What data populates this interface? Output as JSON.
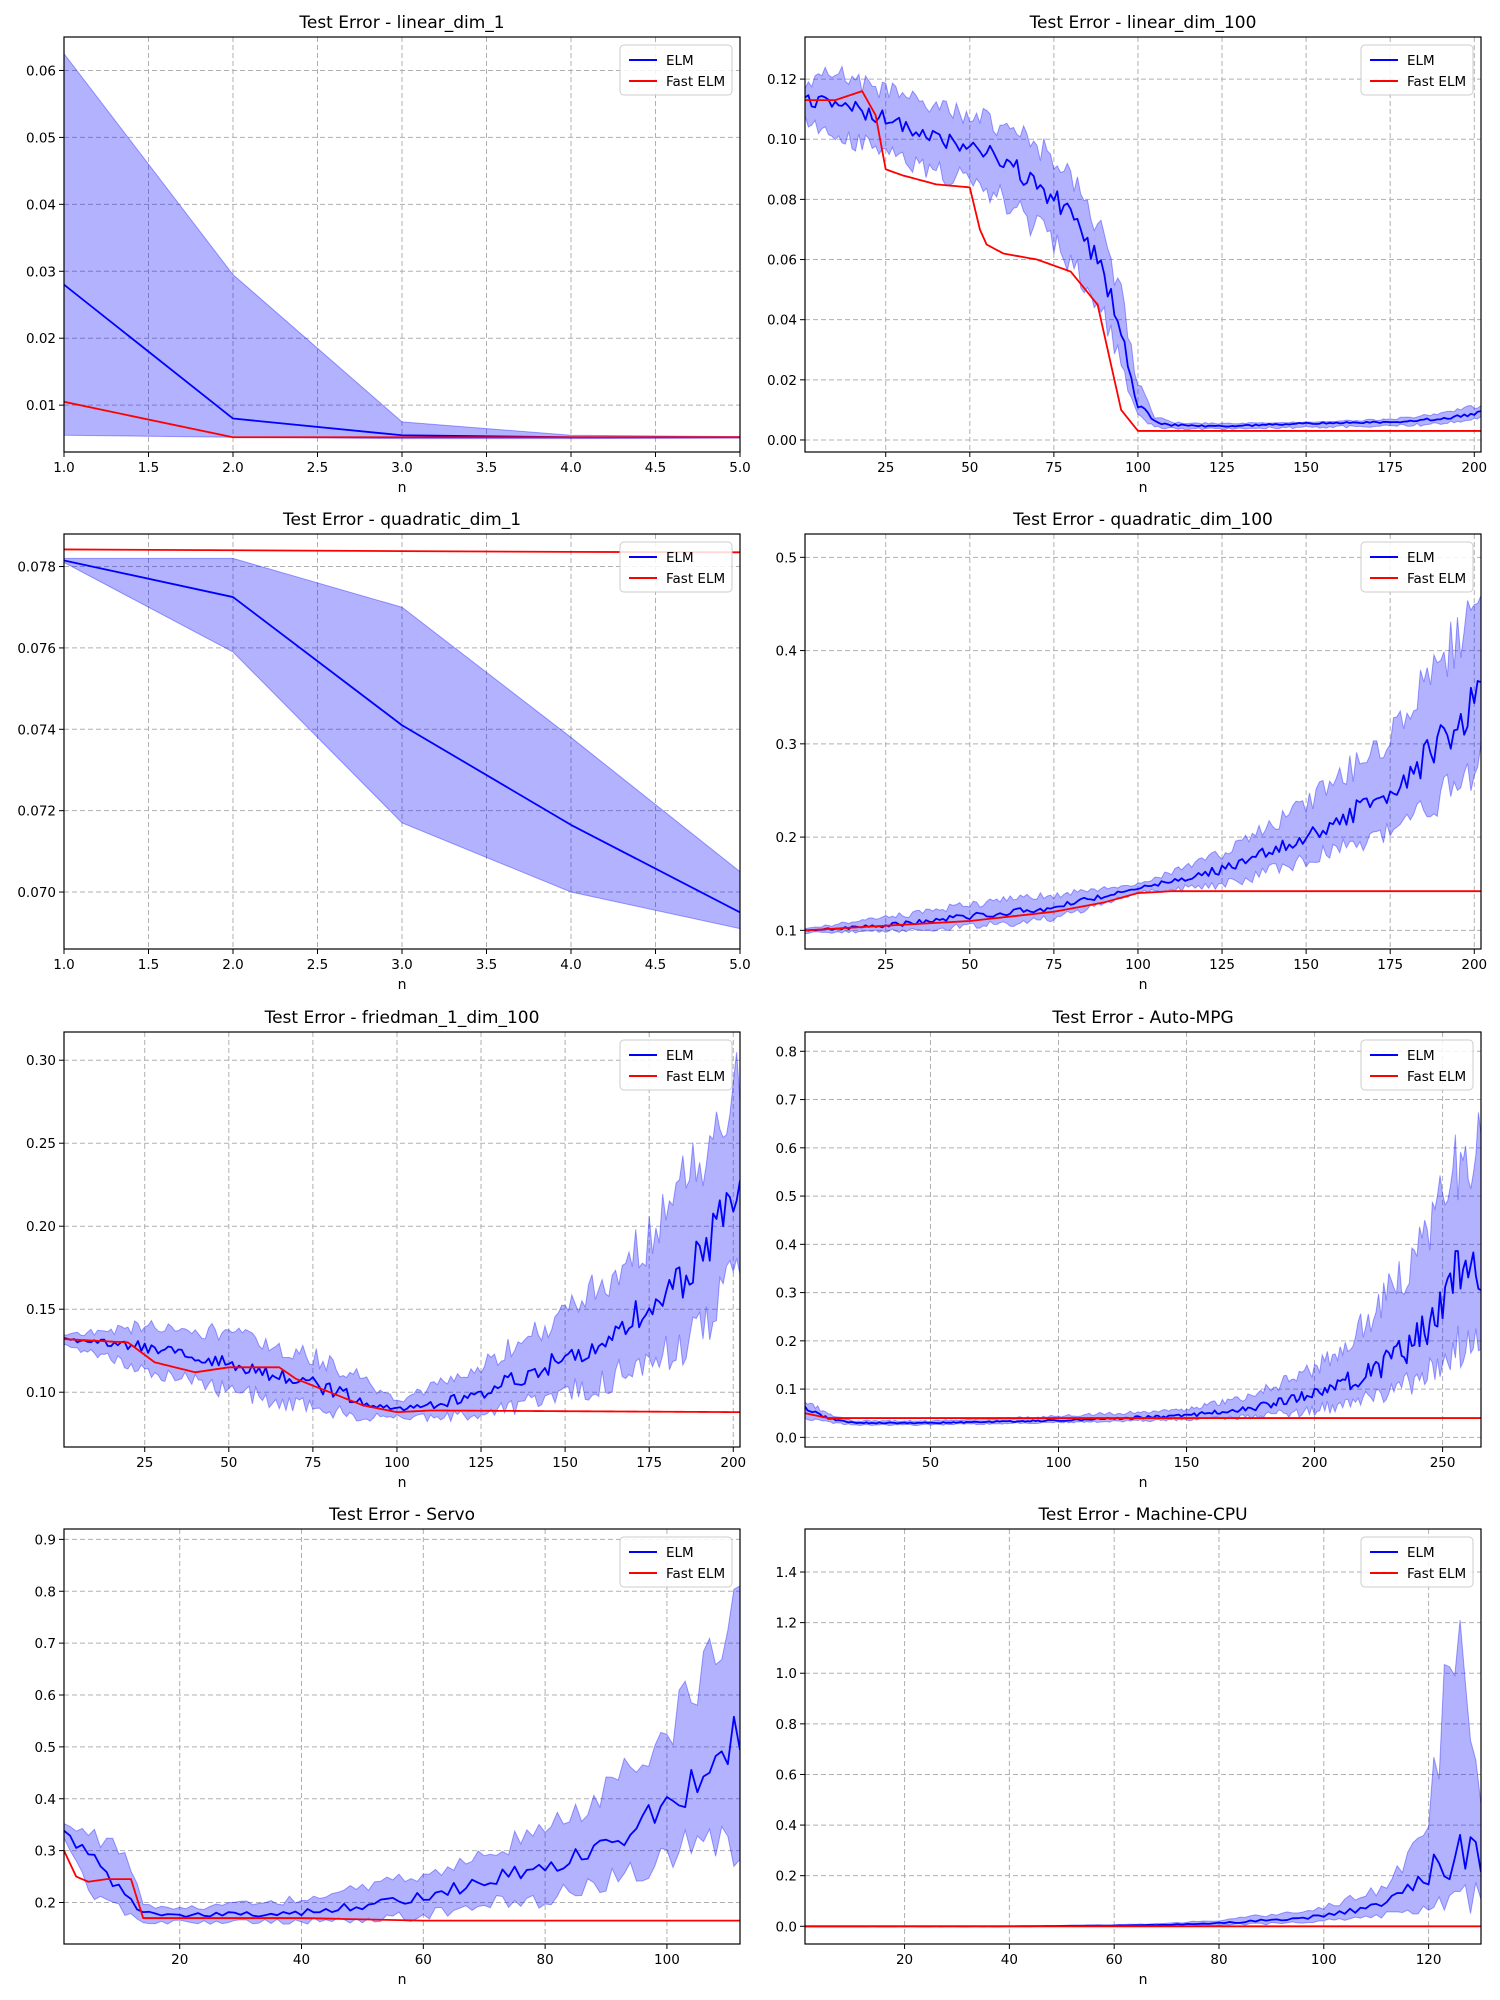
{
  "colors": {
    "elm": "#0000ff",
    "fast_elm": "#ff0000",
    "band": "#0000ff"
  },
  "chart_data": [
    {
      "type": "line",
      "title": "Test Error - linear_dim_1",
      "xlabel": "n",
      "xlim": [
        1,
        5
      ],
      "ylim": [
        0.003,
        0.065
      ],
      "xticks": [
        1.0,
        1.5,
        2.0,
        2.5,
        3.0,
        3.5,
        4.0,
        4.5,
        5.0
      ],
      "xtick_labels": [
        "1.0",
        "1.5",
        "2.0",
        "2.5",
        "3.0",
        "3.5",
        "4.0",
        "4.5",
        "5.0"
      ],
      "yticks": [
        0.01,
        0.02,
        0.03,
        0.04,
        0.05,
        0.06
      ],
      "ytick_labels": [
        "0.01",
        "0.02",
        "0.03",
        "0.04",
        "0.05",
        "0.06"
      ],
      "grid": true,
      "legend": "top-right",
      "series": [
        {
          "name": "ELM",
          "x": [
            1,
            2,
            3,
            4,
            5
          ],
          "values": [
            0.028,
            0.008,
            0.0055,
            0.0052,
            0.0052
          ],
          "band_upper": [
            0.0625,
            0.0295,
            0.0075,
            0.0055,
            0.0053
          ],
          "band_lower": [
            0.0055,
            0.0052,
            0.005,
            0.005,
            0.0051
          ]
        },
        {
          "name": "Fast ELM",
          "x": [
            1,
            2,
            3,
            4,
            5
          ],
          "values": [
            0.0105,
            0.0052,
            0.0052,
            0.0052,
            0.0052
          ]
        }
      ]
    },
    {
      "type": "line",
      "title": "Test Error - linear_dim_100",
      "xlabel": "n",
      "xlim": [
        1,
        202
      ],
      "ylim": [
        -0.004,
        0.134
      ],
      "xticks": [
        25,
        50,
        75,
        100,
        125,
        150,
        175,
        200
      ],
      "xtick_labels": [
        "25",
        "50",
        "75",
        "100",
        "125",
        "150",
        "175",
        "200"
      ],
      "yticks": [
        0.0,
        0.02,
        0.04,
        0.06,
        0.08,
        0.1,
        0.12
      ],
      "ytick_labels": [
        "0.00",
        "0.02",
        "0.04",
        "0.06",
        "0.08",
        "0.10",
        "0.12"
      ],
      "grid": true,
      "legend": "top-right",
      "series": [
        {
          "name": "ELM",
          "x": [
            1,
            10,
            20,
            30,
            40,
            50,
            60,
            70,
            75,
            80,
            85,
            90,
            95,
            100,
            105,
            110,
            125,
            150,
            175,
            190,
            202
          ],
          "values": [
            0.113,
            0.112,
            0.108,
            0.105,
            0.1,
            0.098,
            0.093,
            0.085,
            0.08,
            0.073,
            0.065,
            0.055,
            0.035,
            0.012,
            0.006,
            0.005,
            0.0045,
            0.0055,
            0.006,
            0.007,
            0.009
          ],
          "band_upper": [
            0.12,
            0.124,
            0.12,
            0.116,
            0.112,
            0.11,
            0.106,
            0.1,
            0.096,
            0.09,
            0.08,
            0.07,
            0.05,
            0.02,
            0.008,
            0.006,
            0.0055,
            0.006,
            0.007,
            0.009,
            0.012
          ],
          "band_lower": [
            0.105,
            0.1,
            0.096,
            0.092,
            0.087,
            0.085,
            0.078,
            0.068,
            0.062,
            0.055,
            0.048,
            0.04,
            0.022,
            0.007,
            0.004,
            0.0035,
            0.0035,
            0.004,
            0.0045,
            0.005,
            0.007
          ]
        },
        {
          "name": "Fast ELM",
          "x": [
            1,
            10,
            18,
            22,
            25,
            30,
            40,
            50,
            53,
            55,
            60,
            70,
            80,
            88,
            93,
            95,
            100,
            202
          ],
          "values": [
            0.113,
            0.113,
            0.116,
            0.108,
            0.09,
            0.088,
            0.085,
            0.084,
            0.07,
            0.065,
            0.062,
            0.06,
            0.056,
            0.045,
            0.02,
            0.01,
            0.003,
            0.003
          ]
        }
      ]
    },
    {
      "type": "line",
      "title": "Test Error - quadratic_dim_1",
      "xlabel": "n",
      "xlim": [
        1,
        5
      ],
      "ylim": [
        0.0686,
        0.0788
      ],
      "xticks": [
        1.0,
        1.5,
        2.0,
        2.5,
        3.0,
        3.5,
        4.0,
        4.5,
        5.0
      ],
      "xtick_labels": [
        "1.0",
        "1.5",
        "2.0",
        "2.5",
        "3.0",
        "3.5",
        "4.0",
        "4.5",
        "5.0"
      ],
      "yticks": [
        0.07,
        0.072,
        0.074,
        0.076,
        0.078
      ],
      "ytick_labels": [
        "0.070",
        "0.072",
        "0.074",
        "0.076",
        "0.078"
      ],
      "grid": true,
      "legend": "top-right",
      "series": [
        {
          "name": "ELM",
          "x": [
            1,
            2,
            3,
            4,
            5
          ],
          "values": [
            0.07815,
            0.07725,
            0.0741,
            0.07165,
            0.0695
          ],
          "band_upper": [
            0.0782,
            0.0782,
            0.077,
            0.0738,
            0.0705
          ],
          "band_lower": [
            0.0781,
            0.0759,
            0.0717,
            0.07,
            0.0691
          ]
        },
        {
          "name": "Fast ELM",
          "x": [
            1,
            2,
            3,
            4,
            5
          ],
          "values": [
            0.07842,
            0.0784,
            0.07838,
            0.07836,
            0.07835
          ]
        }
      ]
    },
    {
      "type": "line",
      "title": "Test Error - quadratic_dim_100",
      "xlabel": "n",
      "xlim": [
        1,
        202
      ],
      "ylim": [
        0.08,
        0.525
      ],
      "xticks": [
        25,
        50,
        75,
        100,
        125,
        150,
        175,
        200
      ],
      "xtick_labels": [
        "25",
        "50",
        "75",
        "100",
        "125",
        "150",
        "175",
        "200"
      ],
      "yticks": [
        0.1,
        0.2,
        0.3,
        0.4,
        0.5
      ],
      "ytick_labels": [
        "0.1",
        "0.2",
        "0.3",
        "0.4",
        "0.5"
      ],
      "grid": true,
      "legend": "top-right",
      "series": [
        {
          "name": "ELM",
          "x": [
            1,
            25,
            50,
            75,
            100,
            125,
            150,
            175,
            190,
            200,
            202
          ],
          "values": [
            0.1,
            0.105,
            0.115,
            0.125,
            0.145,
            0.165,
            0.2,
            0.25,
            0.3,
            0.34,
            0.355
          ],
          "band_upper": [
            0.102,
            0.115,
            0.13,
            0.14,
            0.15,
            0.185,
            0.24,
            0.32,
            0.4,
            0.47,
            0.5
          ],
          "band_lower": [
            0.097,
            0.098,
            0.102,
            0.11,
            0.14,
            0.145,
            0.17,
            0.2,
            0.23,
            0.26,
            0.28
          ]
        },
        {
          "name": "Fast ELM",
          "x": [
            1,
            25,
            50,
            75,
            90,
            100,
            110,
            202
          ],
          "values": [
            0.1,
            0.105,
            0.11,
            0.12,
            0.13,
            0.14,
            0.142,
            0.142
          ]
        }
      ]
    },
    {
      "type": "line",
      "title": "Test Error - friedman_1_dim_100",
      "xlabel": "n",
      "xlim": [
        1,
        202
      ],
      "ylim": [
        0.067,
        0.317
      ],
      "xticks": [
        25,
        50,
        75,
        100,
        125,
        150,
        175,
        200
      ],
      "xtick_labels": [
        "25",
        "50",
        "75",
        "100",
        "125",
        "150",
        "175",
        "200"
      ],
      "yticks": [
        0.1,
        0.15,
        0.2,
        0.25,
        0.3
      ],
      "ytick_labels": [
        "0.10",
        "0.15",
        "0.20",
        "0.25",
        "0.30"
      ],
      "grid": true,
      "legend": "top-right",
      "series": [
        {
          "name": "ELM",
          "x": [
            1,
            25,
            50,
            75,
            90,
            100,
            110,
            125,
            150,
            175,
            190,
            202
          ],
          "values": [
            0.132,
            0.127,
            0.118,
            0.105,
            0.095,
            0.09,
            0.092,
            0.1,
            0.12,
            0.15,
            0.18,
            0.225
          ],
          "band_upper": [
            0.135,
            0.142,
            0.138,
            0.125,
            0.11,
            0.095,
            0.105,
            0.12,
            0.15,
            0.2,
            0.25,
            0.3
          ],
          "band_lower": [
            0.128,
            0.112,
            0.098,
            0.088,
            0.083,
            0.085,
            0.083,
            0.085,
            0.095,
            0.11,
            0.13,
            0.16
          ]
        },
        {
          "name": "Fast ELM",
          "x": [
            1,
            20,
            28,
            40,
            50,
            65,
            70,
            80,
            90,
            100,
            110,
            202
          ],
          "values": [
            0.132,
            0.13,
            0.118,
            0.112,
            0.115,
            0.115,
            0.108,
            0.1,
            0.092,
            0.088,
            0.089,
            0.088
          ]
        }
      ]
    },
    {
      "type": "line",
      "title": "Test Error - Auto-MPG",
      "xlabel": "n",
      "xlim": [
        1,
        265
      ],
      "ylim": [
        -0.02,
        0.84
      ],
      "xticks": [
        50,
        100,
        150,
        200,
        250
      ],
      "xtick_labels": [
        "50",
        "100",
        "150",
        "200",
        "250"
      ],
      "yticks": [
        0.0,
        0.1,
        0.2,
        0.3,
        0.4,
        0.5,
        0.6,
        0.7,
        0.8
      ],
      "ytick_labels": [
        "0.0",
        "0.1",
        "0.2",
        "0.3",
        "0.4",
        "0.5",
        "0.6",
        "0.7",
        "0.8"
      ],
      "grid": true,
      "legend": "top-right",
      "series": [
        {
          "name": "ELM",
          "x": [
            1,
            10,
            20,
            50,
            100,
            150,
            175,
            200,
            220,
            240,
            255,
            265
          ],
          "values": [
            0.06,
            0.04,
            0.03,
            0.03,
            0.035,
            0.045,
            0.06,
            0.09,
            0.13,
            0.2,
            0.33,
            0.36
          ],
          "band_upper": [
            0.08,
            0.05,
            0.035,
            0.035,
            0.045,
            0.06,
            0.09,
            0.15,
            0.25,
            0.4,
            0.6,
            0.65
          ],
          "band_lower": [
            0.04,
            0.03,
            0.025,
            0.025,
            0.03,
            0.035,
            0.04,
            0.05,
            0.07,
            0.1,
            0.15,
            0.2
          ]
        },
        {
          "name": "Fast ELM",
          "x": [
            1,
            10,
            20,
            265
          ],
          "values": [
            0.05,
            0.04,
            0.04,
            0.04
          ]
        }
      ]
    },
    {
      "type": "line",
      "title": "Test Error - Servo",
      "xlabel": "n",
      "xlim": [
        1,
        112
      ],
      "ylim": [
        0.12,
        0.92
      ],
      "xticks": [
        20,
        40,
        60,
        80,
        100
      ],
      "xtick_labels": [
        "20",
        "40",
        "60",
        "80",
        "100"
      ],
      "yticks": [
        0.2,
        0.3,
        0.4,
        0.5,
        0.6,
        0.7,
        0.8,
        0.9
      ],
      "ytick_labels": [
        "0.2",
        "0.3",
        "0.4",
        "0.5",
        "0.6",
        "0.7",
        "0.8",
        "0.9"
      ],
      "grid": true,
      "legend": "top-right",
      "series": [
        {
          "name": "ELM",
          "x": [
            1,
            5,
            10,
            14,
            20,
            40,
            60,
            80,
            90,
            100,
            105,
            110,
            112
          ],
          "values": [
            0.335,
            0.29,
            0.23,
            0.18,
            0.175,
            0.18,
            0.21,
            0.27,
            0.31,
            0.38,
            0.45,
            0.51,
            0.505
          ],
          "band_upper": [
            0.35,
            0.34,
            0.33,
            0.2,
            0.19,
            0.21,
            0.26,
            0.35,
            0.43,
            0.56,
            0.65,
            0.8,
            0.86
          ],
          "band_lower": [
            0.32,
            0.22,
            0.18,
            0.16,
            0.16,
            0.16,
            0.17,
            0.2,
            0.23,
            0.27,
            0.3,
            0.3,
            0.3
          ]
        },
        {
          "name": "Fast ELM",
          "x": [
            1,
            3,
            5,
            8,
            12,
            14,
            20,
            40,
            60,
            112
          ],
          "values": [
            0.3,
            0.25,
            0.24,
            0.245,
            0.245,
            0.17,
            0.17,
            0.17,
            0.165,
            0.165
          ]
        }
      ]
    },
    {
      "type": "line",
      "title": "Test Error - Machine-CPU",
      "xlabel": "n",
      "xlim": [
        1,
        130
      ],
      "ylim": [
        -0.07,
        1.57
      ],
      "xticks": [
        20,
        40,
        60,
        80,
        100,
        120
      ],
      "xtick_labels": [
        "20",
        "40",
        "60",
        "80",
        "100",
        "120"
      ],
      "yticks": [
        0.0,
        0.2,
        0.4,
        0.6,
        0.8,
        1.0,
        1.2,
        1.4
      ],
      "ytick_labels": [
        "0.0",
        "0.2",
        "0.4",
        "0.6",
        "0.8",
        "1.0",
        "1.2",
        "1.4"
      ],
      "grid": true,
      "legend": "top-right",
      "series": [
        {
          "name": "ELM",
          "x": [
            1,
            40,
            60,
            70,
            80,
            90,
            100,
            110,
            115,
            120,
            125,
            128,
            130
          ],
          "values": [
            0.0,
            0.0,
            0.003,
            0.006,
            0.012,
            0.025,
            0.04,
            0.08,
            0.12,
            0.2,
            0.3,
            0.3,
            0.25
          ],
          "band_upper": [
            0.0,
            0.001,
            0.006,
            0.012,
            0.025,
            0.05,
            0.08,
            0.15,
            0.25,
            0.45,
            1.4,
            0.8,
            0.5
          ],
          "band_lower": [
            0.0,
            0.0,
            0.001,
            0.002,
            0.004,
            0.008,
            0.015,
            0.03,
            0.04,
            0.06,
            0.1,
            0.08,
            0.1
          ]
        },
        {
          "name": "Fast ELM",
          "x": [
            1,
            130
          ],
          "values": [
            0.0,
            0.0
          ]
        }
      ]
    }
  ]
}
